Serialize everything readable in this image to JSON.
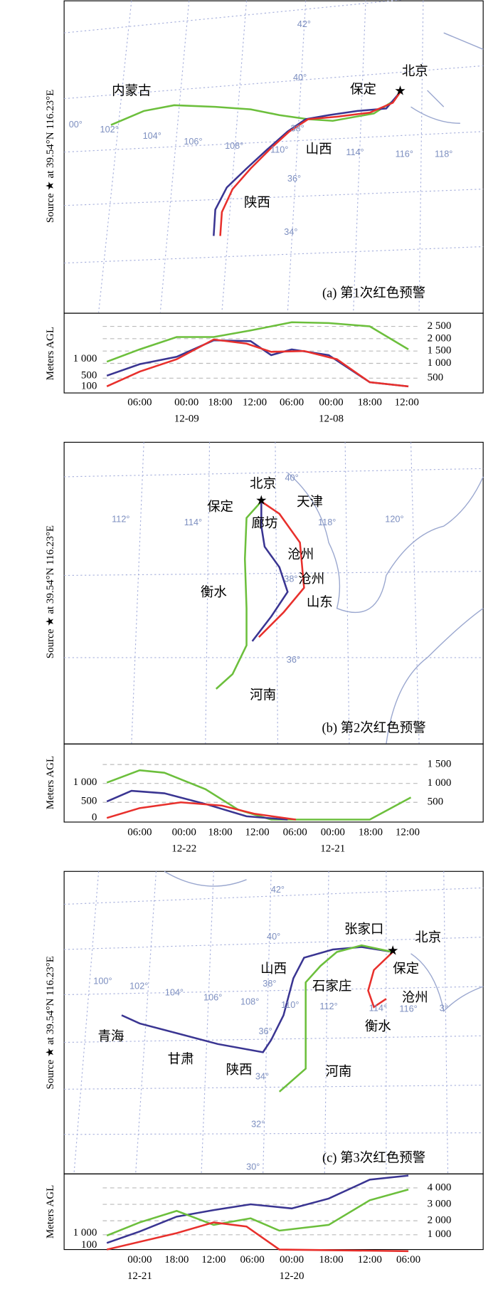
{
  "y_axis_label": "Source ★ at 39.54°N 116.23°E",
  "height_axis_label": "Meters AGL",
  "panels": [
    {
      "caption": "(a) 第1次红色预警",
      "places": [
        "内蒙古",
        "保定",
        "北京",
        "山西",
        "陕西"
      ],
      "lat_labels": [
        "42°",
        "40°",
        "38°",
        "36°",
        "34°"
      ],
      "lon_labels": [
        "00°",
        "102°",
        "104°",
        "106°",
        "108°",
        "110°",
        "114°",
        "116°",
        "118°"
      ],
      "height_left_ticks": [
        "1 000",
        "500",
        "100"
      ],
      "height_right_ticks": [
        "2 500",
        "2 000",
        "1 500",
        "1 000",
        "500"
      ],
      "times": [
        "06:00",
        "00:00",
        "18:00",
        "12:00",
        "06:00",
        "00:00",
        "18:00",
        "12:00"
      ],
      "dates": [
        "12-09",
        "12-08"
      ]
    },
    {
      "caption": "(b) 第2次红色预警",
      "places": [
        "北京",
        "保定",
        "天津",
        "廊坊",
        "沧州",
        "沧州",
        "衡水",
        "山东",
        "河南"
      ],
      "lat_labels": [
        "40°",
        "38°",
        "36°"
      ],
      "lon_labels": [
        "112°",
        "114°",
        "118°",
        "120°"
      ],
      "height_left_ticks": [
        "1 000",
        "500",
        "0"
      ],
      "height_right_ticks": [
        "1 500",
        "1 000",
        "500"
      ],
      "times": [
        "06:00",
        "00:00",
        "18:00",
        "12:00",
        "06:00",
        "00:00",
        "18:00",
        "12:00"
      ],
      "dates": [
        "12-22",
        "12-21"
      ]
    },
    {
      "caption": "(c) 第3次红色预警",
      "places": [
        "张家口",
        "北京",
        "保定",
        "山西",
        "石家庄",
        "沧州",
        "衡水",
        "青海",
        "甘肃",
        "陕西",
        "河南"
      ],
      "lat_labels": [
        "42°",
        "40°",
        "38°",
        "36°",
        "34°",
        "32°",
        "30°"
      ],
      "lon_labels": [
        "100°",
        "102°",
        "104°",
        "106°",
        "108°",
        "110°",
        "112°",
        "114°",
        "116°",
        "3°"
      ],
      "height_left_ticks": [
        "1 000",
        "100"
      ],
      "height_right_ticks": [
        "4 000",
        "3 000",
        "2 000",
        "1 000"
      ],
      "times": [
        "00:00",
        "18:00",
        "12:00",
        "06:00",
        "00:00",
        "18:00",
        "12:00",
        "06:00"
      ],
      "dates": [
        "12-21",
        "12-20"
      ]
    }
  ]
}
